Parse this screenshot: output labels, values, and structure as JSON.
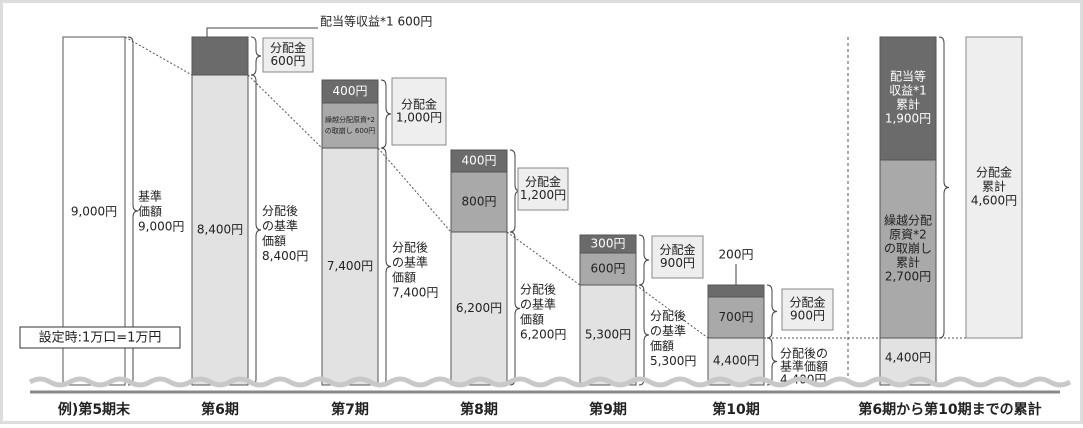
{
  "top_annotation": "配当等収益*1 600円",
  "setting_note": "設定時:1万口=1万円",
  "example": {
    "label": "例)第5期末",
    "value": "9,000円",
    "nav": [
      "基準",
      "価額",
      "9,000円"
    ]
  },
  "periods": [
    {
      "label": "第6期",
      "dark": [],
      "mid": [],
      "base": "8,400円",
      "distribution": [
        "分配金",
        "600円"
      ],
      "nav_after": [
        "分配後",
        "の基準",
        "価額",
        "8,400円"
      ]
    },
    {
      "label": "第7期",
      "dark": [
        "400円"
      ],
      "mid": [
        "繰越分配原資*2",
        "の取崩し 600円"
      ],
      "base": "7,400円",
      "distribution": [
        "分配金",
        "1,000円"
      ],
      "nav_after": [
        "分配後",
        "の基準",
        "価額",
        "7,400円"
      ]
    },
    {
      "label": "第8期",
      "dark": [
        "400円"
      ],
      "mid": [
        "800円"
      ],
      "base": "6,200円",
      "distribution": [
        "分配金",
        "1,200円"
      ],
      "nav_after": [
        "分配後",
        "の基準",
        "価額",
        "6,200円"
      ]
    },
    {
      "label": "第9期",
      "dark": [
        "300円"
      ],
      "mid": [
        "600円"
      ],
      "base": "5,300円",
      "distribution": [
        "分配金",
        "900円"
      ],
      "nav_after": [
        "分配後",
        "の基準",
        "価額",
        "5,300円"
      ]
    },
    {
      "label": "第10期",
      "dark_note": "200円",
      "dark": [],
      "mid": [
        "700円"
      ],
      "base": "4,400円",
      "distribution": [
        "分配金",
        "900円"
      ],
      "nav_after": [
        "分配後の",
        "基準価額",
        "4,400円"
      ]
    }
  ],
  "cumulative": {
    "label": "第6期から第10期までの累計",
    "dark": [
      "配当等",
      "収益*1",
      "累計",
      "1,900円"
    ],
    "mid": [
      "繰越分配",
      "原資*2",
      "の取崩し",
      "累計",
      "2,700円"
    ],
    "base": "4,400円",
    "total": [
      "分配金",
      "累計",
      "4,600円"
    ]
  }
}
